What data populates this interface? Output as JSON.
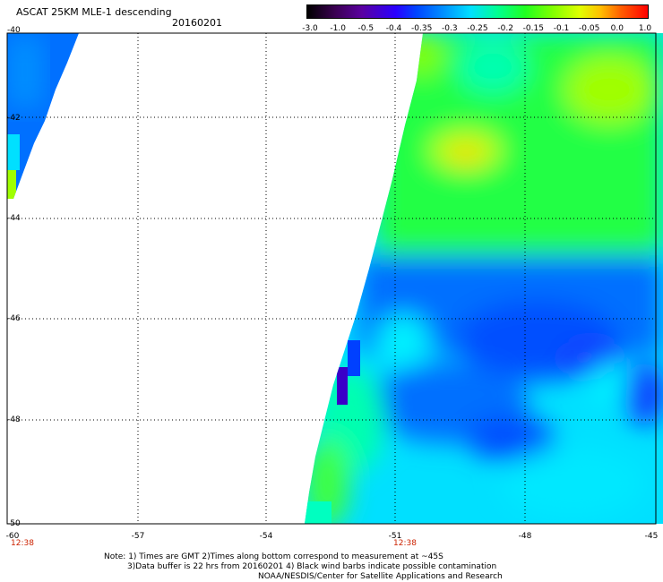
{
  "title": "ASCAT 25KM MLE-1 descending",
  "date": "20160201",
  "colorbar": {
    "labels": [
      "-3.0",
      "-1.0",
      "-0.5",
      "-0.4",
      "-0.35",
      "-0.3",
      "-0.25",
      "-0.2",
      "-0.15",
      "-0.1",
      "-0.05",
      "0.0",
      "1.0"
    ]
  },
  "axes": {
    "y_ticks": [
      "-40",
      "-42",
      "-44",
      "-46",
      "-48",
      "-50"
    ],
    "x_ticks": [
      "-60",
      "-57",
      "-54",
      "-51",
      "-48",
      "-45"
    ],
    "time_labels": [
      "12:38",
      "12:38"
    ]
  },
  "notes": {
    "line1": "Note: 1) Times are GMT 2)Times along bottom correspond to measurement at ~45S",
    "line2": "3)Data buffer is 22 hrs from 20160201 4) Black wind barbs indicate possible contamination",
    "line3": "NOAA/NESDIS/Center for Satellite Applications and Research"
  },
  "colors": {
    "green": "#22ff22",
    "lime": "#a0ff00",
    "yellow": "#f0ff00",
    "cyan": "#00f0ff",
    "aqua": "#00ffd0",
    "lightblue": "#00a0ff",
    "blue": "#0066ff",
    "darkblue": "#2a3cff",
    "purple": "#3a00c8"
  }
}
